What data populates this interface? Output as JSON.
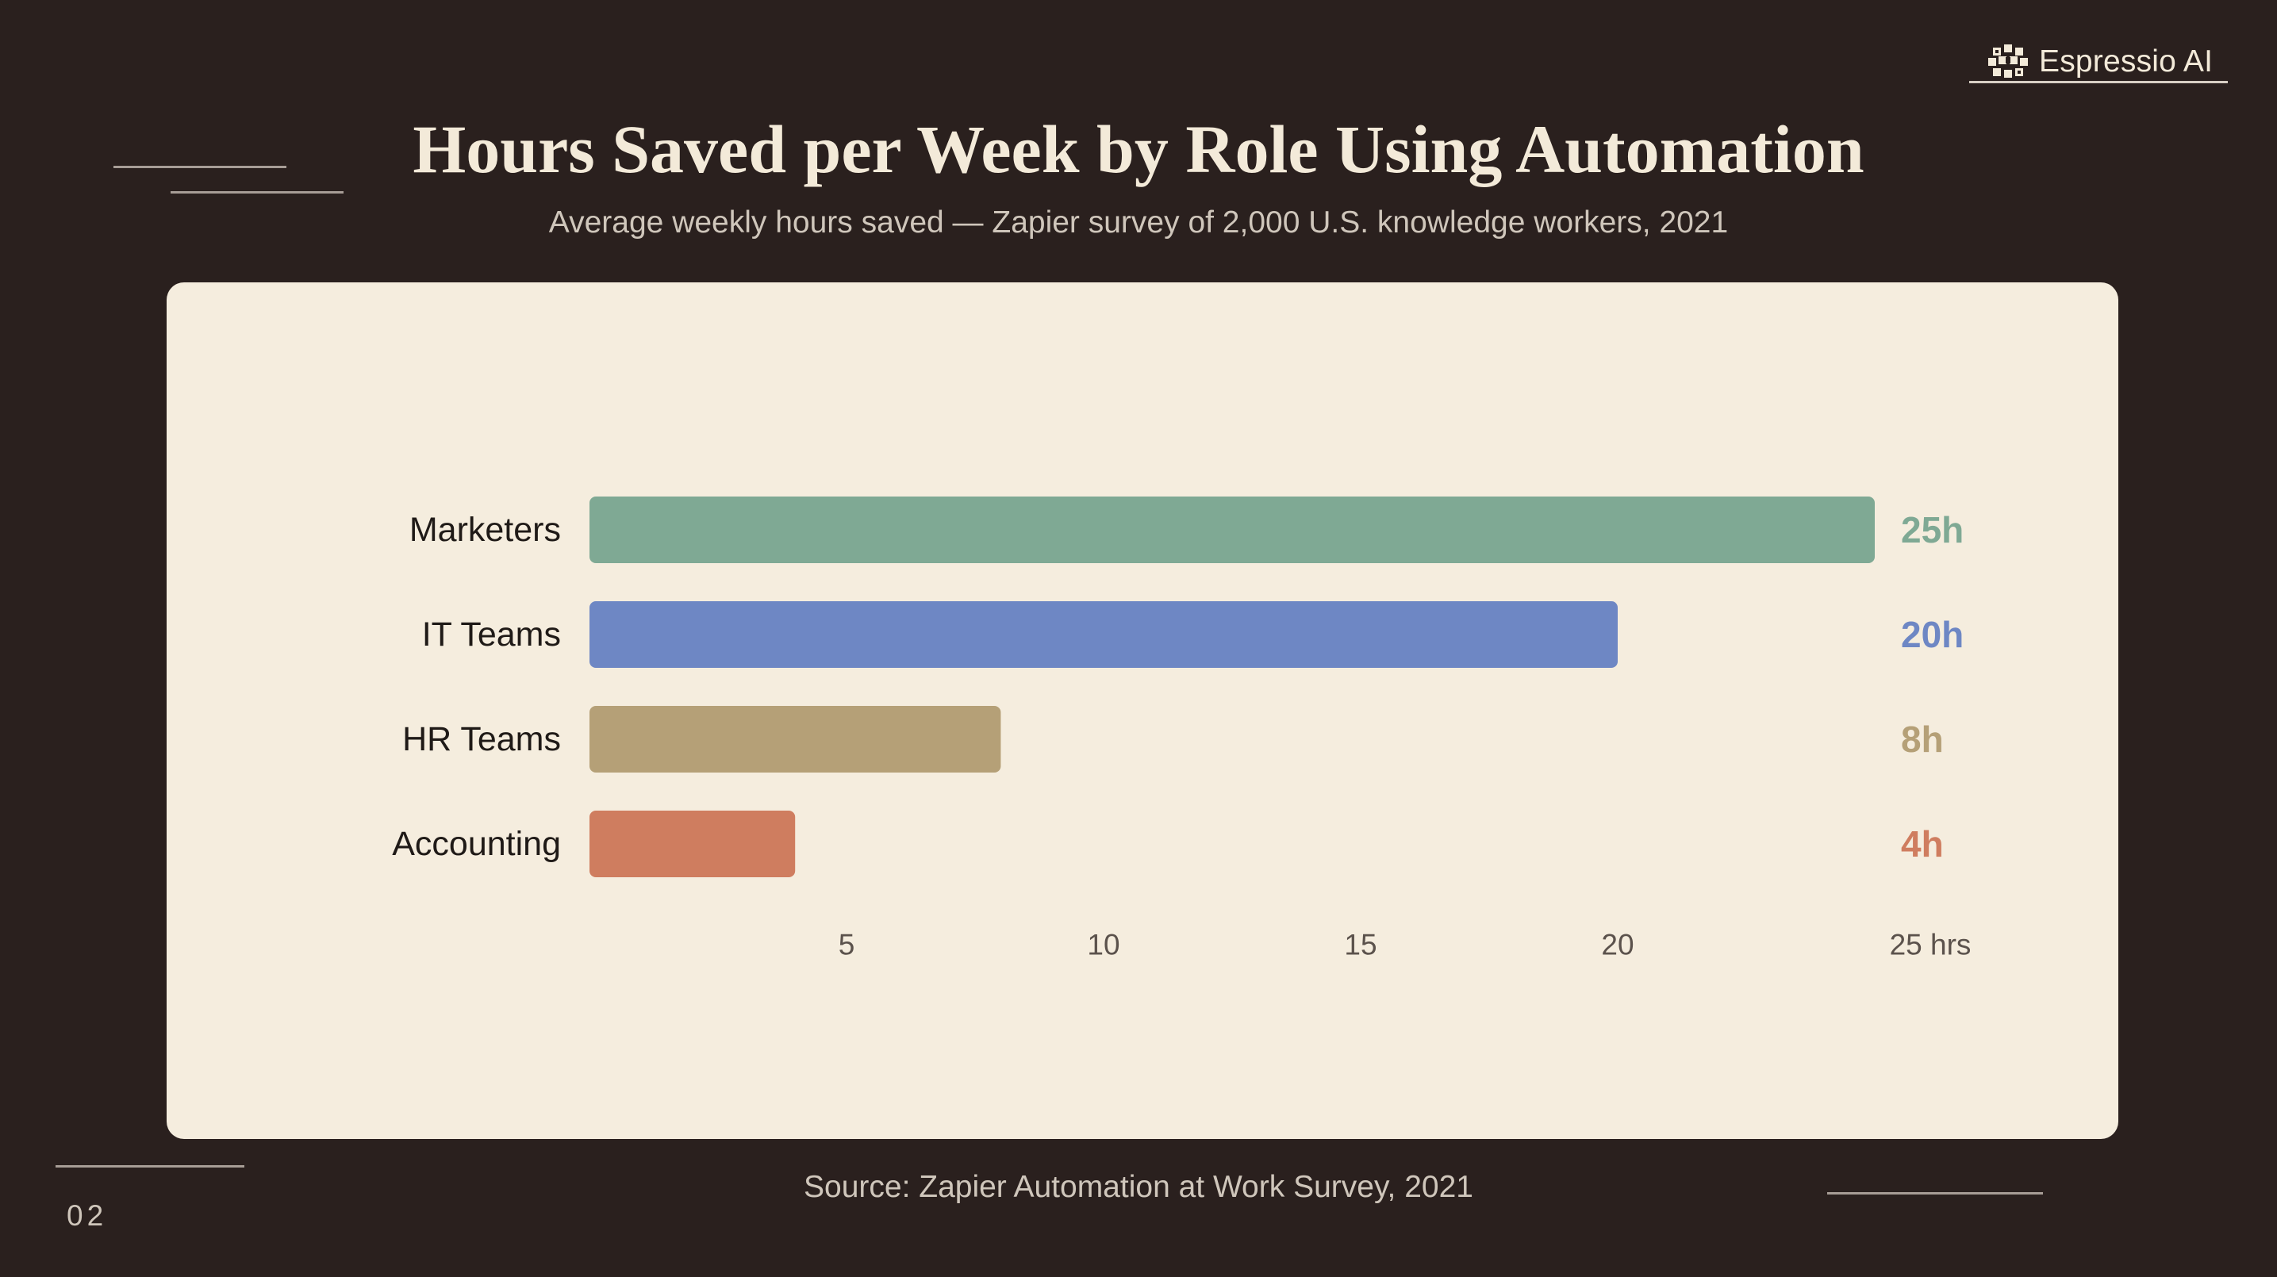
{
  "brand": {
    "name": "Espressio AI",
    "logo": "espressio-logo-icon"
  },
  "slide": {
    "title": "Hours Saved per Week by Role Using Automation",
    "subtitle": "Average weekly hours saved — Zapier survey of 2,000 U.S. knowledge workers, 2021",
    "source": "Source: Zapier Automation at Work Survey, 2021",
    "page_number": "02"
  },
  "colors": {
    "background": "#2a201e",
    "panel": "#f5edde",
    "text_light": "#f3ead9",
    "text_muted": "#cfc6bb",
    "label": "#1f1a17",
    "tick": "#5b524c"
  },
  "chart_data": {
    "type": "bar",
    "orientation": "horizontal",
    "categories": [
      "Marketers",
      "IT Teams",
      "HR Teams",
      "Accounting"
    ],
    "values": [
      25,
      20,
      8,
      4
    ],
    "value_labels": [
      "25h",
      "20h",
      "8h",
      "4h"
    ],
    "colors": [
      "#7fa994",
      "#6e87c4",
      "#b5a077",
      "#cf7d5f"
    ],
    "xlim": [
      0,
      25
    ],
    "x_ticks": [
      {
        "value": 5,
        "label": "5"
      },
      {
        "value": 10,
        "label": "10"
      },
      {
        "value": 15,
        "label": "15"
      },
      {
        "value": 20,
        "label": "20"
      },
      {
        "value": 25,
        "label": "25 hrs"
      }
    ],
    "grid": false,
    "legend": "none"
  }
}
